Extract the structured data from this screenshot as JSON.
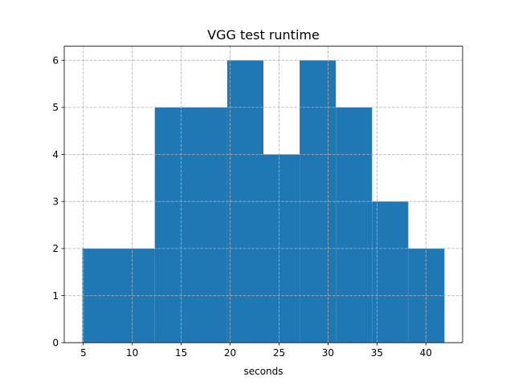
{
  "chart_data": {
    "type": "bar",
    "title": "VGG test runtime",
    "xlabel": "seconds",
    "ylabel": "",
    "bin_edges": [
      4.9,
      12.3,
      19.7,
      23.4,
      27.1,
      30.8,
      34.5,
      38.2,
      41.9
    ],
    "counts": [
      2,
      5,
      6,
      4,
      6,
      5,
      3,
      2
    ],
    "xlim": [
      3.05,
      43.75
    ],
    "ylim": [
      0,
      6.3
    ],
    "xticks": [
      5,
      10,
      15,
      20,
      25,
      30,
      35,
      40
    ],
    "yticks": [
      0,
      1,
      2,
      3,
      4,
      5,
      6
    ],
    "grid": true,
    "bar_color": "#1f77b4"
  }
}
